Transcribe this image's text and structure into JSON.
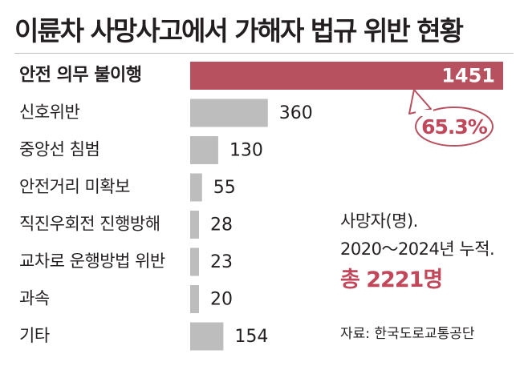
{
  "title": "이륜차 사망사고에서 가해자 법규 위반 현황",
  "colors": {
    "highlight": "#b7505f",
    "highlight_text": "#c1485a",
    "bar": "#bdbdbd",
    "text": "#231f20"
  },
  "chart_data": {
    "type": "bar",
    "orientation": "horizontal",
    "categories": [
      "안전 의무 불이행",
      "신호위반",
      "중앙선 침범",
      "안전거리 미확보",
      "직진우회전 진행방해",
      "교차로 운행방법 위반",
      "과속",
      "기타"
    ],
    "values": [
      1451,
      360,
      130,
      55,
      28,
      23,
      20,
      154
    ],
    "highlight_index": 0,
    "xlim": [
      0,
      1451
    ],
    "grid": false,
    "callout": "65.3%"
  },
  "notes": {
    "line1": "사망자(명).",
    "line2": "2020～2024년 누적.",
    "total": "총 2221명",
    "source": "자료: 한국도로교통공단"
  }
}
